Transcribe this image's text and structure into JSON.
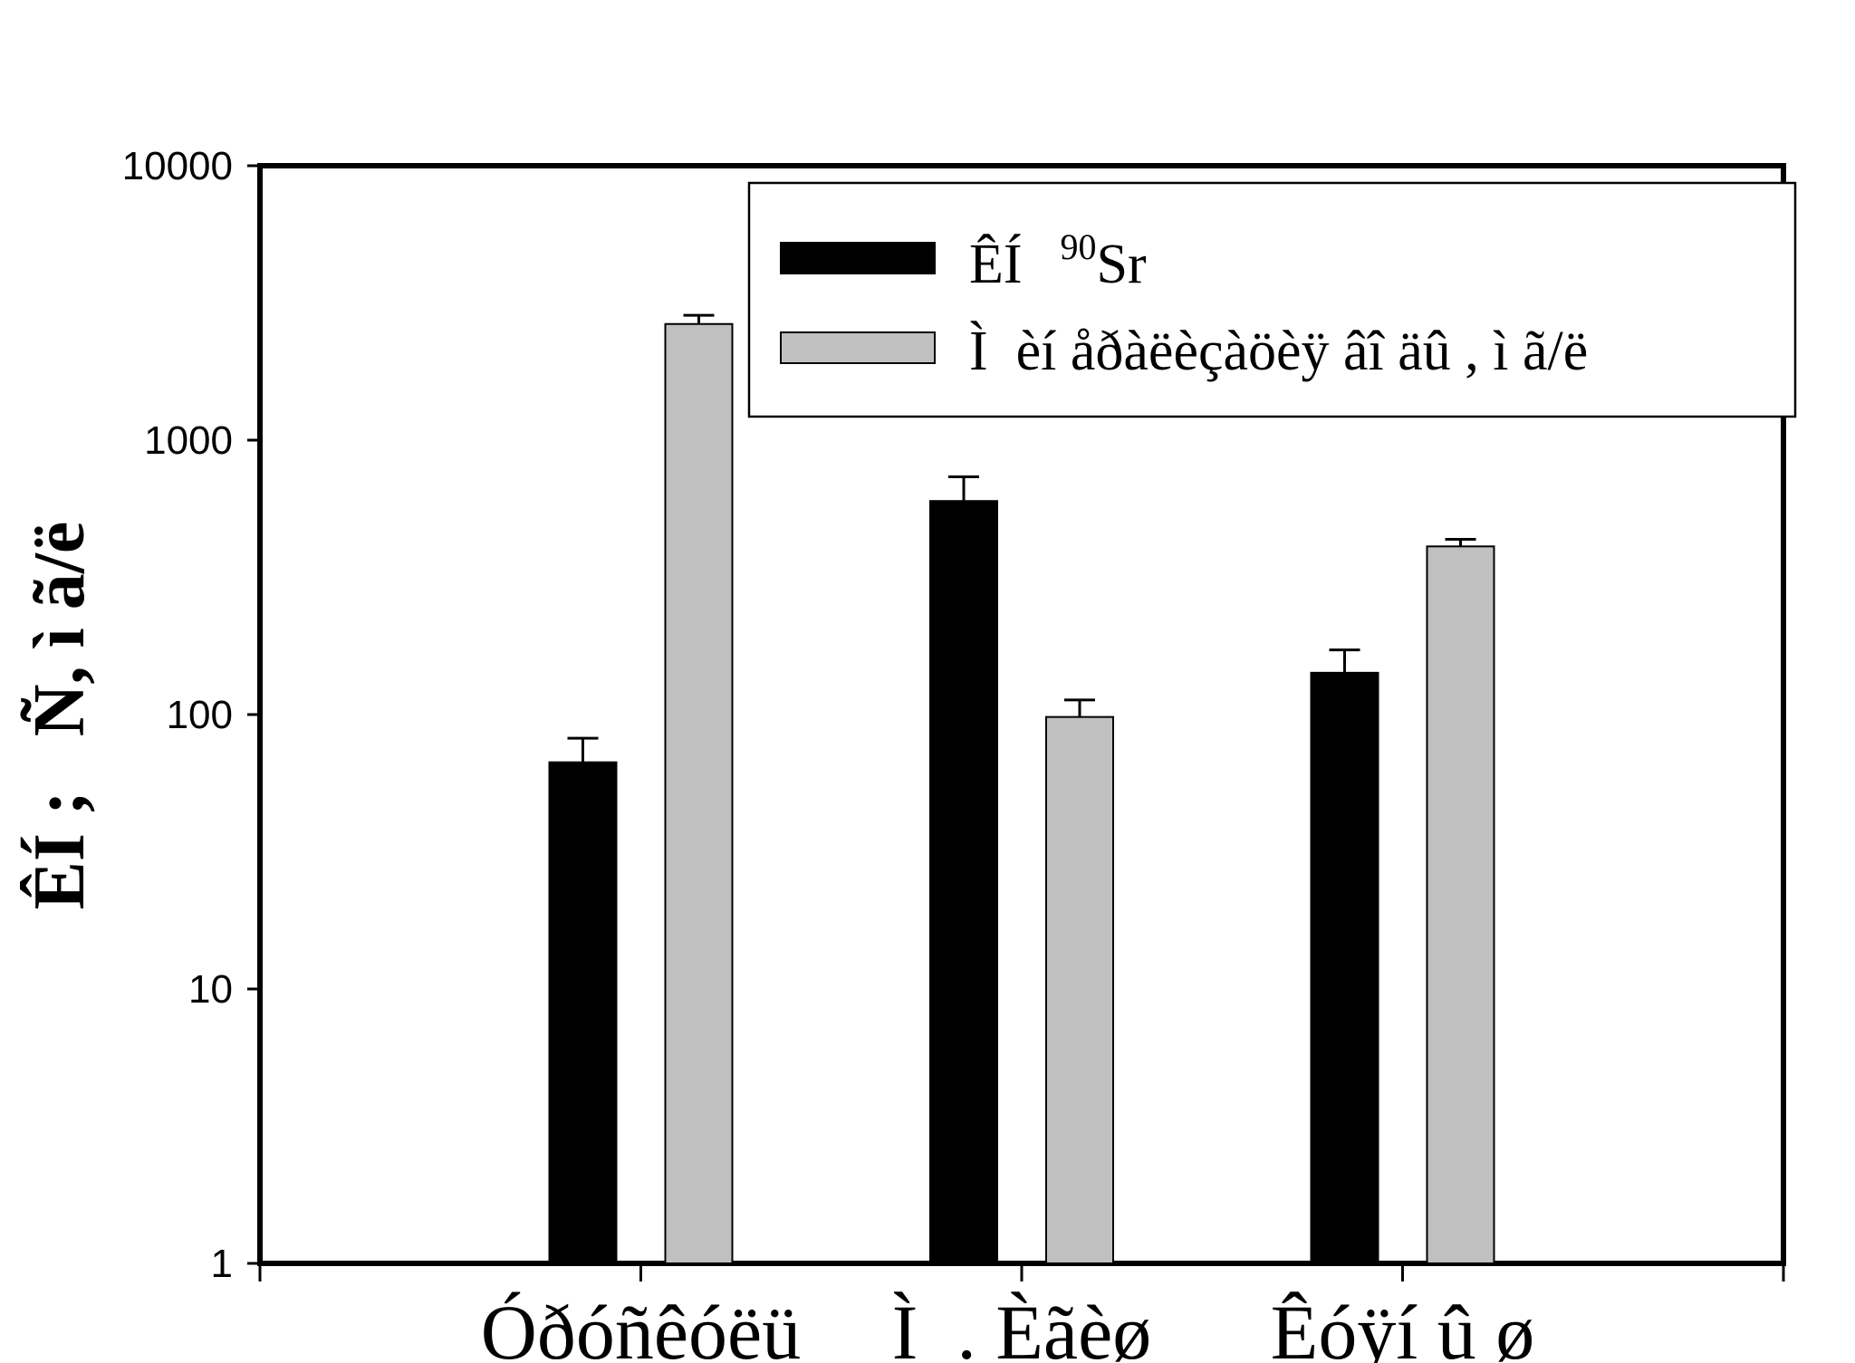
{
  "chart_data": {
    "type": "bar",
    "y_scale": "log",
    "ylim": [
      1,
      10000
    ],
    "y_ticks": [
      "1",
      "10",
      "100",
      "1000",
      "10000"
    ],
    "ylabel": "ÊÍ ;   Ñ, ì ã/ë",
    "xlabel": "",
    "title": "",
    "categories": [
      "Óðóñêóëü",
      "Ì  . Èãèø",
      "Êóÿí û ø"
    ],
    "series": [
      {
        "name": "ÊÍ   90Sr",
        "name_main": "ÊÍ",
        "name_super": "90",
        "name_tail": "Sr",
        "color": "#000000",
        "values": [
          67,
          600,
          142
        ],
        "errors": [
          15,
          135,
          30
        ]
      },
      {
        "name": "Ì  èí åðàëèçàöèÿ âî äû , ì ã/ë",
        "color": "#c0c0c0",
        "values": [
          2650,
          98,
          410
        ],
        "errors": [
          200,
          15,
          25
        ]
      }
    ],
    "legend_position": "top-right",
    "grid": false
  }
}
